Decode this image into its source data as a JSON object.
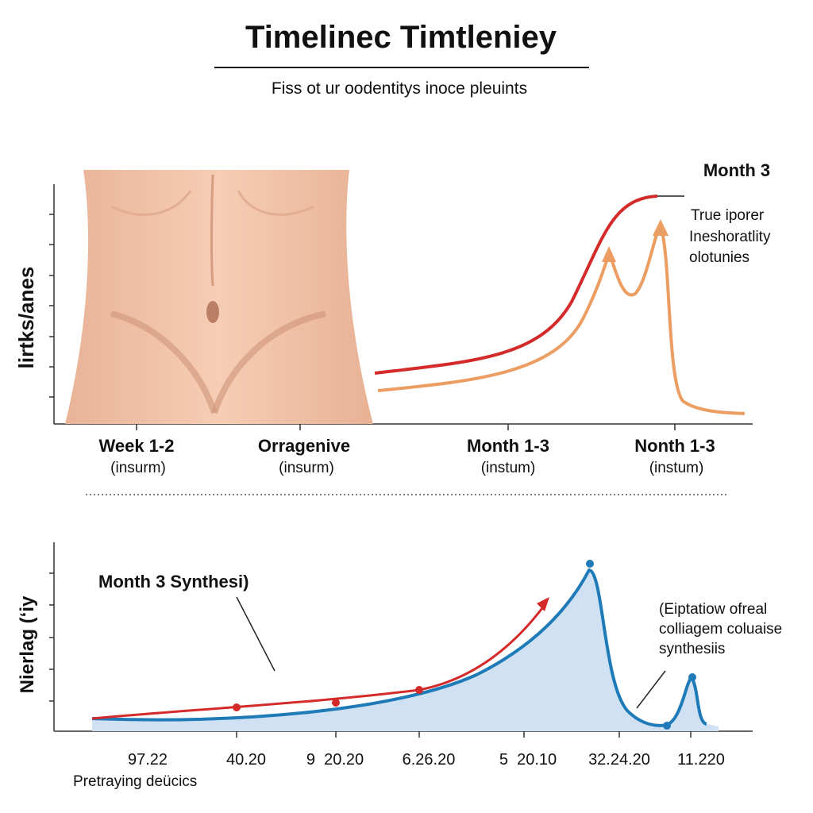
{
  "header": {
    "title": "Timelinec Timtleniey",
    "subtitle": "Fiss ot ur oodentitys inoce pleuints"
  },
  "top_panel": {
    "y_label": "lirtks/anes",
    "annotation_title": "Month 3",
    "annotation_lines": [
      "True iporer",
      "Ineshoratlity",
      "olotunies"
    ],
    "x_labels": [
      {
        "label": "Week 1-2",
        "sub": "(insurm)"
      },
      {
        "label": "Orragenive",
        "sub": "(insurm)"
      },
      {
        "label": "Month 1-3",
        "sub": "(instum)"
      },
      {
        "label": "Nonth 1-3",
        "sub": "(instum)"
      }
    ]
  },
  "bottom_panel": {
    "y_label": "Nierlag (‘iy",
    "annotation_title": "Month 3 Synthesi)",
    "annotation_lines": [
      "(Eiptatiow ofreal",
      "colliagem coluaise",
      "synthesiis"
    ],
    "x_labels": [
      "97.22",
      "40.20",
      "9  20.20",
      "6.26.20",
      "5  20.10",
      "32.24.20",
      "11.220"
    ],
    "footer": "Pretraying deücics"
  }
}
